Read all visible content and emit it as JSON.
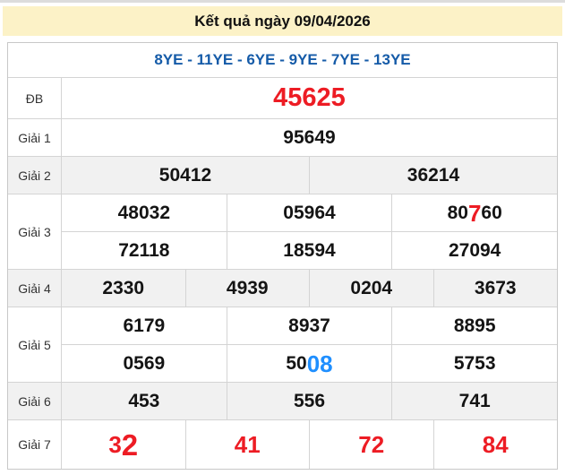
{
  "title": "Kết quả ngày 09/04/2026",
  "codes_line": "8YE - 11YE - 6YE - 9YE - 7YE - 13YE",
  "colors": {
    "title_bg": "#fcf2c7",
    "codes_blue": "#155ba8",
    "result_red": "#ed1c24",
    "highlight_blue": "#1f8fff",
    "shaded_row_bg": "#f1f1f1",
    "border": "#d4d4d4"
  },
  "prizes": [
    {
      "label": "ĐB",
      "variant": "jackpot",
      "shaded": false,
      "lines": [
        [
          {
            "segs": [
              {
                "t": "45625"
              }
            ]
          }
        ]
      ]
    },
    {
      "label": "Giải 1",
      "variant": "normal",
      "shaded": false,
      "lines": [
        [
          {
            "segs": [
              {
                "t": "95649"
              }
            ]
          }
        ]
      ]
    },
    {
      "label": "Giải 2",
      "variant": "normal",
      "shaded": true,
      "lines": [
        [
          {
            "segs": [
              {
                "t": "50412"
              }
            ]
          },
          {
            "segs": [
              {
                "t": "36214"
              }
            ]
          }
        ]
      ]
    },
    {
      "label": "Giải 3",
      "variant": "normal",
      "shaded": false,
      "lines": [
        [
          {
            "segs": [
              {
                "t": "48032"
              }
            ]
          },
          {
            "segs": [
              {
                "t": "05964"
              }
            ]
          },
          {
            "segs": [
              {
                "t": "80"
              },
              {
                "t": "7",
                "hl": "red"
              },
              {
                "t": "60"
              }
            ]
          }
        ],
        [
          {
            "segs": [
              {
                "t": "72118"
              }
            ]
          },
          {
            "segs": [
              {
                "t": "18594"
              }
            ]
          },
          {
            "segs": [
              {
                "t": "27094"
              }
            ]
          }
        ]
      ]
    },
    {
      "label": "Giải 4",
      "variant": "normal",
      "shaded": true,
      "lines": [
        [
          {
            "segs": [
              {
                "t": "2330"
              }
            ]
          },
          {
            "segs": [
              {
                "t": "4939"
              }
            ]
          },
          {
            "segs": [
              {
                "t": "0204"
              }
            ]
          },
          {
            "segs": [
              {
                "t": "3673"
              }
            ]
          }
        ]
      ]
    },
    {
      "label": "Giải 5",
      "variant": "normal",
      "shaded": false,
      "lines": [
        [
          {
            "segs": [
              {
                "t": "6179"
              }
            ]
          },
          {
            "segs": [
              {
                "t": "8937"
              }
            ]
          },
          {
            "segs": [
              {
                "t": "8895"
              }
            ]
          }
        ],
        [
          {
            "segs": [
              {
                "t": "0569"
              }
            ]
          },
          {
            "segs": [
              {
                "t": "50"
              },
              {
                "t": "08",
                "hl": "blue"
              }
            ]
          },
          {
            "segs": [
              {
                "t": "5753"
              }
            ]
          }
        ]
      ]
    },
    {
      "label": "Giải 6",
      "variant": "normal",
      "shaded": true,
      "lines": [
        [
          {
            "segs": [
              {
                "t": "453"
              }
            ]
          },
          {
            "segs": [
              {
                "t": "556"
              }
            ]
          },
          {
            "segs": [
              {
                "t": "741"
              }
            ]
          }
        ]
      ]
    },
    {
      "label": "Giải 7",
      "variant": "red",
      "shaded": false,
      "lines": [
        [
          {
            "segs": [
              {
                "t": "3"
              },
              {
                "t": "2",
                "hl": "big"
              }
            ]
          },
          {
            "segs": [
              {
                "t": "41"
              }
            ]
          },
          {
            "segs": [
              {
                "t": "72"
              }
            ]
          },
          {
            "segs": [
              {
                "t": "84"
              }
            ]
          }
        ]
      ]
    }
  ]
}
